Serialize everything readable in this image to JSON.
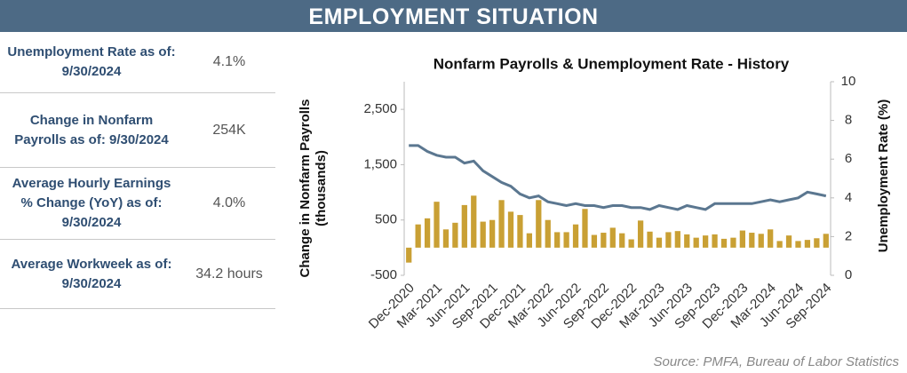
{
  "header": {
    "title": "EMPLOYMENT SITUATION"
  },
  "metrics": [
    {
      "label": "Unemployment Rate as of: 9/30/2024",
      "value": "4.1%"
    },
    {
      "label": "Change in Nonfarm Payrolls as of: 9/30/2024",
      "value": "254K"
    },
    {
      "label": "Average Hourly Earnings % Change (YoY) as of: 9/30/2024",
      "value": "4.0%"
    },
    {
      "label": "Average Workweek as of: 9/30/2024",
      "value": "34.2 hours"
    }
  ],
  "chart_data": {
    "type": "bar-line",
    "title": "Nonfarm Payrolls & Unemployment Rate - History",
    "y_label": [
      "Change in  Nonfarm Payrolls",
      "(thousands)"
    ],
    "y2_label": "Unemployment  Rate (%)",
    "categories": [
      "Dec-2020",
      null,
      null,
      "Mar-2021",
      null,
      null,
      "Jun-2021",
      null,
      null,
      "Sep-2021",
      null,
      null,
      "Dec-2021",
      null,
      null,
      "Mar-2022",
      null,
      null,
      "Jun-2022",
      null,
      null,
      "Sep-2022",
      null,
      null,
      "Dec-2022",
      null,
      null,
      "Mar-2023",
      null,
      null,
      "Jun-2023",
      null,
      null,
      "Sep-2023",
      null,
      null,
      "Dec-2023",
      null,
      null,
      "Mar-2024",
      null,
      null,
      "Jun-2024",
      null,
      null,
      "Sep-2024"
    ],
    "series": [
      {
        "name": "Change in Nonfarm Payrolls",
        "type": "bar",
        "color": "#c9a034",
        "values": [
          -270,
          420,
          530,
          830,
          330,
          450,
          770,
          940,
          470,
          500,
          860,
          650,
          590,
          260,
          860,
          500,
          280,
          280,
          420,
          700,
          230,
          270,
          360,
          260,
          150,
          490,
          290,
          180,
          280,
          300,
          240,
          180,
          220,
          240,
          160,
          180,
          310,
          270,
          250,
          330,
          120,
          220,
          120,
          140,
          170,
          250
        ]
      },
      {
        "name": "Unemployment Rate",
        "type": "line",
        "axis": "y2",
        "color": "#5b7790",
        "values": [
          6.7,
          6.7,
          6.4,
          6.2,
          6.1,
          6.1,
          5.8,
          5.9,
          5.4,
          5.1,
          4.8,
          4.6,
          4.2,
          4.0,
          4.1,
          3.8,
          3.7,
          3.6,
          3.7,
          3.6,
          3.6,
          3.5,
          3.6,
          3.6,
          3.5,
          3.5,
          3.4,
          3.6,
          3.5,
          3.4,
          3.6,
          3.5,
          3.4,
          3.7,
          3.7,
          3.7,
          3.7,
          3.7,
          3.8,
          3.9,
          3.8,
          3.9,
          4.0,
          4.3,
          4.2,
          4.1
        ]
      }
    ],
    "ylim": [
      -500,
      3000
    ],
    "yticks": [
      -500,
      500,
      {
        "value": 1500,
        "label": "1,500"
      },
      {
        "value": 2500,
        "label": "2,500"
      }
    ],
    "y2lim": [
      0,
      10
    ],
    "y2ticks": [
      0,
      2,
      4,
      6,
      8,
      10
    ],
    "source": "Source:  PMFA, Bureau of Labor Statistics"
  }
}
